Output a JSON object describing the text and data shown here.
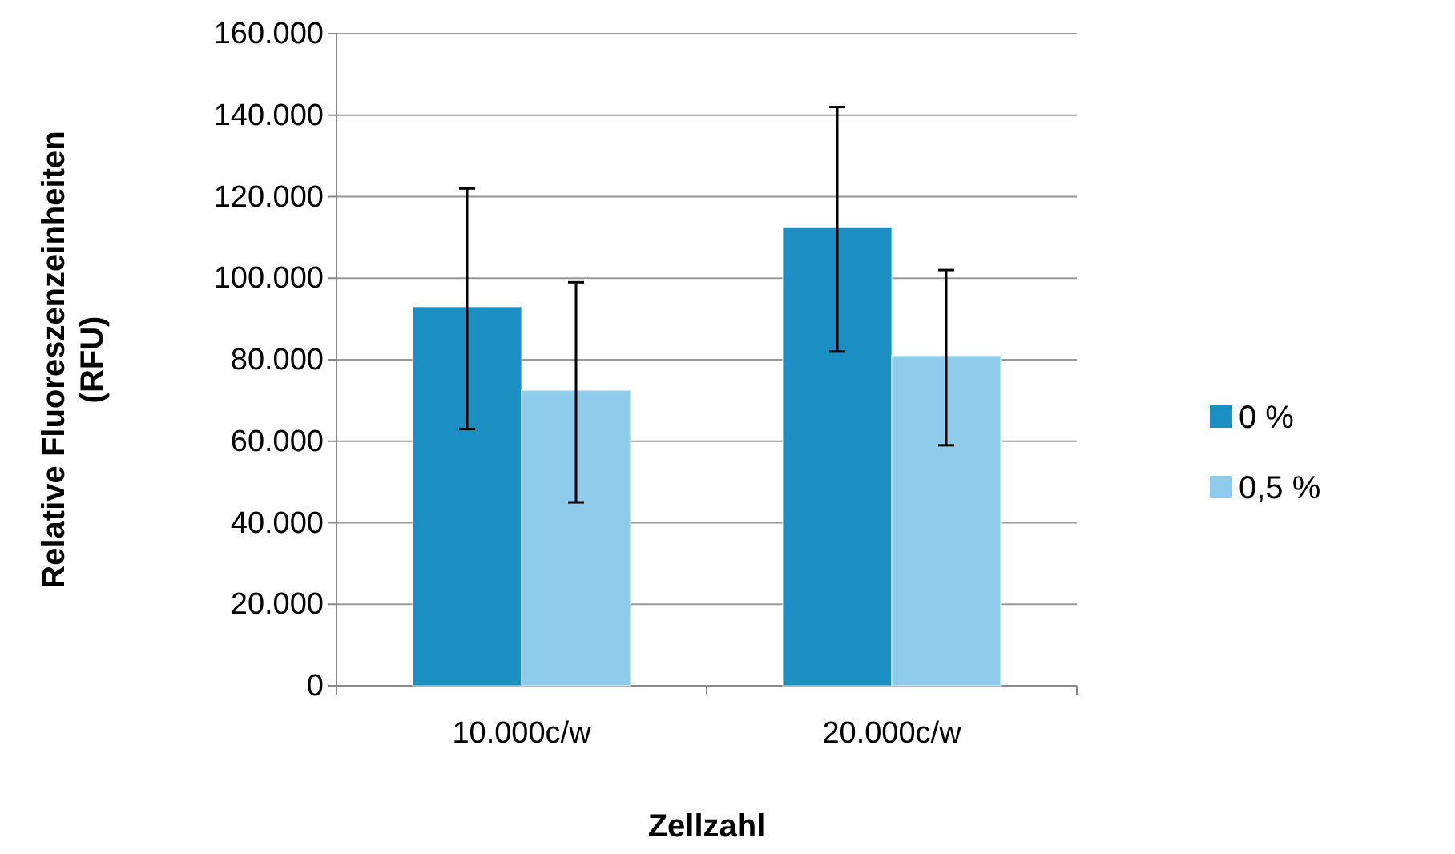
{
  "chart_data": {
    "type": "bar",
    "xlabel": "Zellzahl",
    "ylabel": "Relative Fluoreszenzeinheiten (RFU)",
    "categories": [
      "10.000c/w",
      "20.000c/w"
    ],
    "series": [
      {
        "name": "0 %",
        "color": "#1b8fc2",
        "values": [
          93000,
          112500
        ],
        "errors": [
          [
            63000,
            122000
          ],
          [
            82000,
            142000
          ]
        ]
      },
      {
        "name": "0,5 %",
        "color": "#8fcbea",
        "values": [
          72500,
          81000
        ],
        "errors": [
          [
            45000,
            99000
          ],
          [
            59000,
            102000
          ]
        ]
      }
    ],
    "ylim": [
      0,
      160000
    ],
    "yticks": [
      0,
      {
        "value": 20000,
        "label": "20.000"
      },
      {
        "value": 40000,
        "label": "40.000"
      },
      {
        "value": 60000,
        "label": "60.000"
      },
      {
        "value": 80000,
        "label": "80.000"
      },
      {
        "value": 100000,
        "label": "100.000"
      },
      {
        "value": 120000,
        "label": "120.000"
      },
      {
        "value": 140000,
        "label": "140.000"
      },
      {
        "value": 160000,
        "label": "160.000"
      }
    ],
    "grid": "y",
    "legend": "right"
  }
}
